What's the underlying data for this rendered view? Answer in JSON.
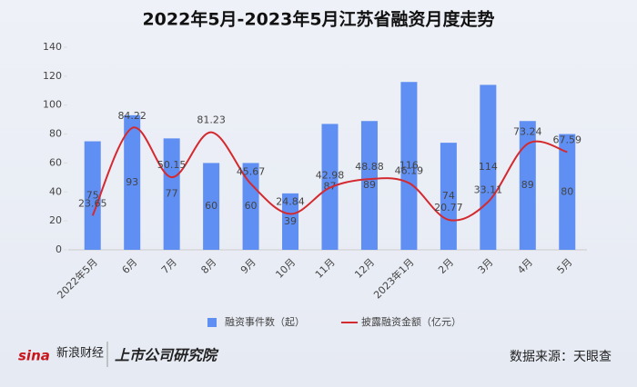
{
  "chart_data": {
    "type": "bar",
    "title": "2022年5月-2023年5月江苏省融资月度走势",
    "categories": [
      "2022年5月",
      "6月",
      "7月",
      "8月",
      "9月",
      "10月",
      "11月",
      "12月",
      "2023年1月",
      "2月",
      "3月",
      "4月",
      "5月"
    ],
    "series": [
      {
        "name": "融资事件数（起）",
        "type": "bar",
        "color": "#5f8ff2",
        "values": [
          75,
          93,
          77,
          60,
          60,
          39,
          87,
          89,
          116,
          74,
          114,
          89,
          80
        ]
      },
      {
        "name": "披露融资金额（亿元）",
        "type": "line",
        "color": "#d42a2f",
        "values": [
          23.65,
          84.22,
          50.15,
          81.23,
          45.67,
          24.84,
          42.98,
          48.88,
          46.19,
          20.77,
          33.11,
          73.24,
          67.59
        ]
      }
    ],
    "ylim": [
      0,
      140
    ],
    "yticks": [
      0,
      20,
      40,
      60,
      80,
      100,
      120,
      140
    ],
    "legend": "bottom",
    "brands": [
      "sina",
      "新浪财经",
      "上市公司研究院"
    ],
    "source": "数据来源：天眼查"
  }
}
